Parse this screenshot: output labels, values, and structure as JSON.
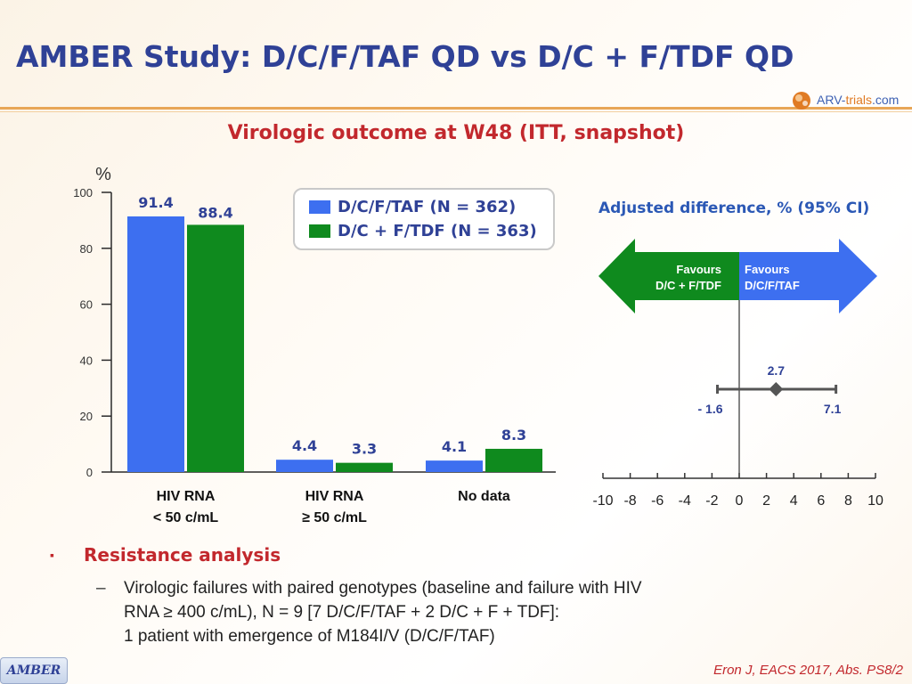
{
  "header": {
    "title": "AMBER Study: D/C/F/TAF QD vs D/C + F/TDF QD",
    "logo_part1": "ARV-",
    "logo_part2": "trials",
    "logo_part3": ".com"
  },
  "chart_data": [
    {
      "type": "bar",
      "title": "Virologic outcome at W48 (ITT, snapshot)",
      "ylabel": "%",
      "ylim": [
        0,
        100
      ],
      "yticks": [
        0,
        20,
        40,
        60,
        80,
        100
      ],
      "categories": [
        "HIV RNA\n< 50 c/mL",
        "HIV RNA\n≥ 50 c/mL",
        "No data"
      ],
      "series": [
        {
          "name": "D/C/F/TAF (N = 362)",
          "color": "#3d6ff0",
          "values": [
            91.4,
            4.4,
            4.1
          ]
        },
        {
          "name": "D/C + F/TDF (N = 363)",
          "color": "#0f8a1e",
          "values": [
            88.4,
            3.3,
            8.3
          ]
        }
      ],
      "legend": "top-center"
    },
    {
      "type": "scatter",
      "title": "Adjusted difference, % (95% CI)",
      "xlim": [
        -10,
        10
      ],
      "xticks": [
        -10,
        -8,
        -6,
        -4,
        -2,
        0,
        2,
        4,
        6,
        8,
        10
      ],
      "point": {
        "estimate": 2.7,
        "ci_low": -1.6,
        "ci_high": 7.1
      },
      "estimate_label": "2.7",
      "ci_low_label": "- 1.6",
      "ci_high_label": "7.1",
      "favours_left": {
        "line1": "Favours",
        "line2": "D/C + F/TDF",
        "color": "#0f8a1e"
      },
      "favours_right": {
        "line1": "Favours",
        "line2": "D/C/F/TAF",
        "color": "#3d6ff0"
      }
    }
  ],
  "resistance": {
    "bullet": "▪",
    "heading": "Resistance analysis",
    "dash": "–",
    "lines": [
      "Virologic failures with paired genotypes (baseline and failure with HIV",
      "RNA ≥ 400 c/mL), N = 9 [7 D/C/F/TAF + 2 D/C + F + TDF]:",
      "1 patient with emergence of M184I/V (D/C/F/TAF)"
    ]
  },
  "footer": {
    "study_tab": "AMBER",
    "citation": "Eron J, EACS 2017, Abs. PS8/2"
  }
}
